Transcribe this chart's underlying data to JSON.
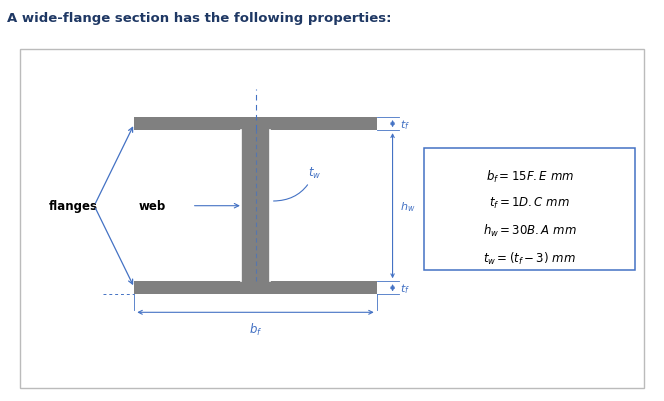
{
  "title": "A wide-flange section has the following properties:",
  "title_color": "#1f3864",
  "title_fontsize": 9.5,
  "bg_color": "#ffffff",
  "border_color": "#aaaaaa",
  "section_color": "#808080",
  "blue_color": "#4472C4",
  "eq_lines": [
    "$b_f = 15F.E\\ mm$",
    "$t_f = 1D.C\\ mm$",
    "$h_w = 30B.A\\ mm$",
    "$t_w = (t_f - 3)\\ mm$"
  ]
}
